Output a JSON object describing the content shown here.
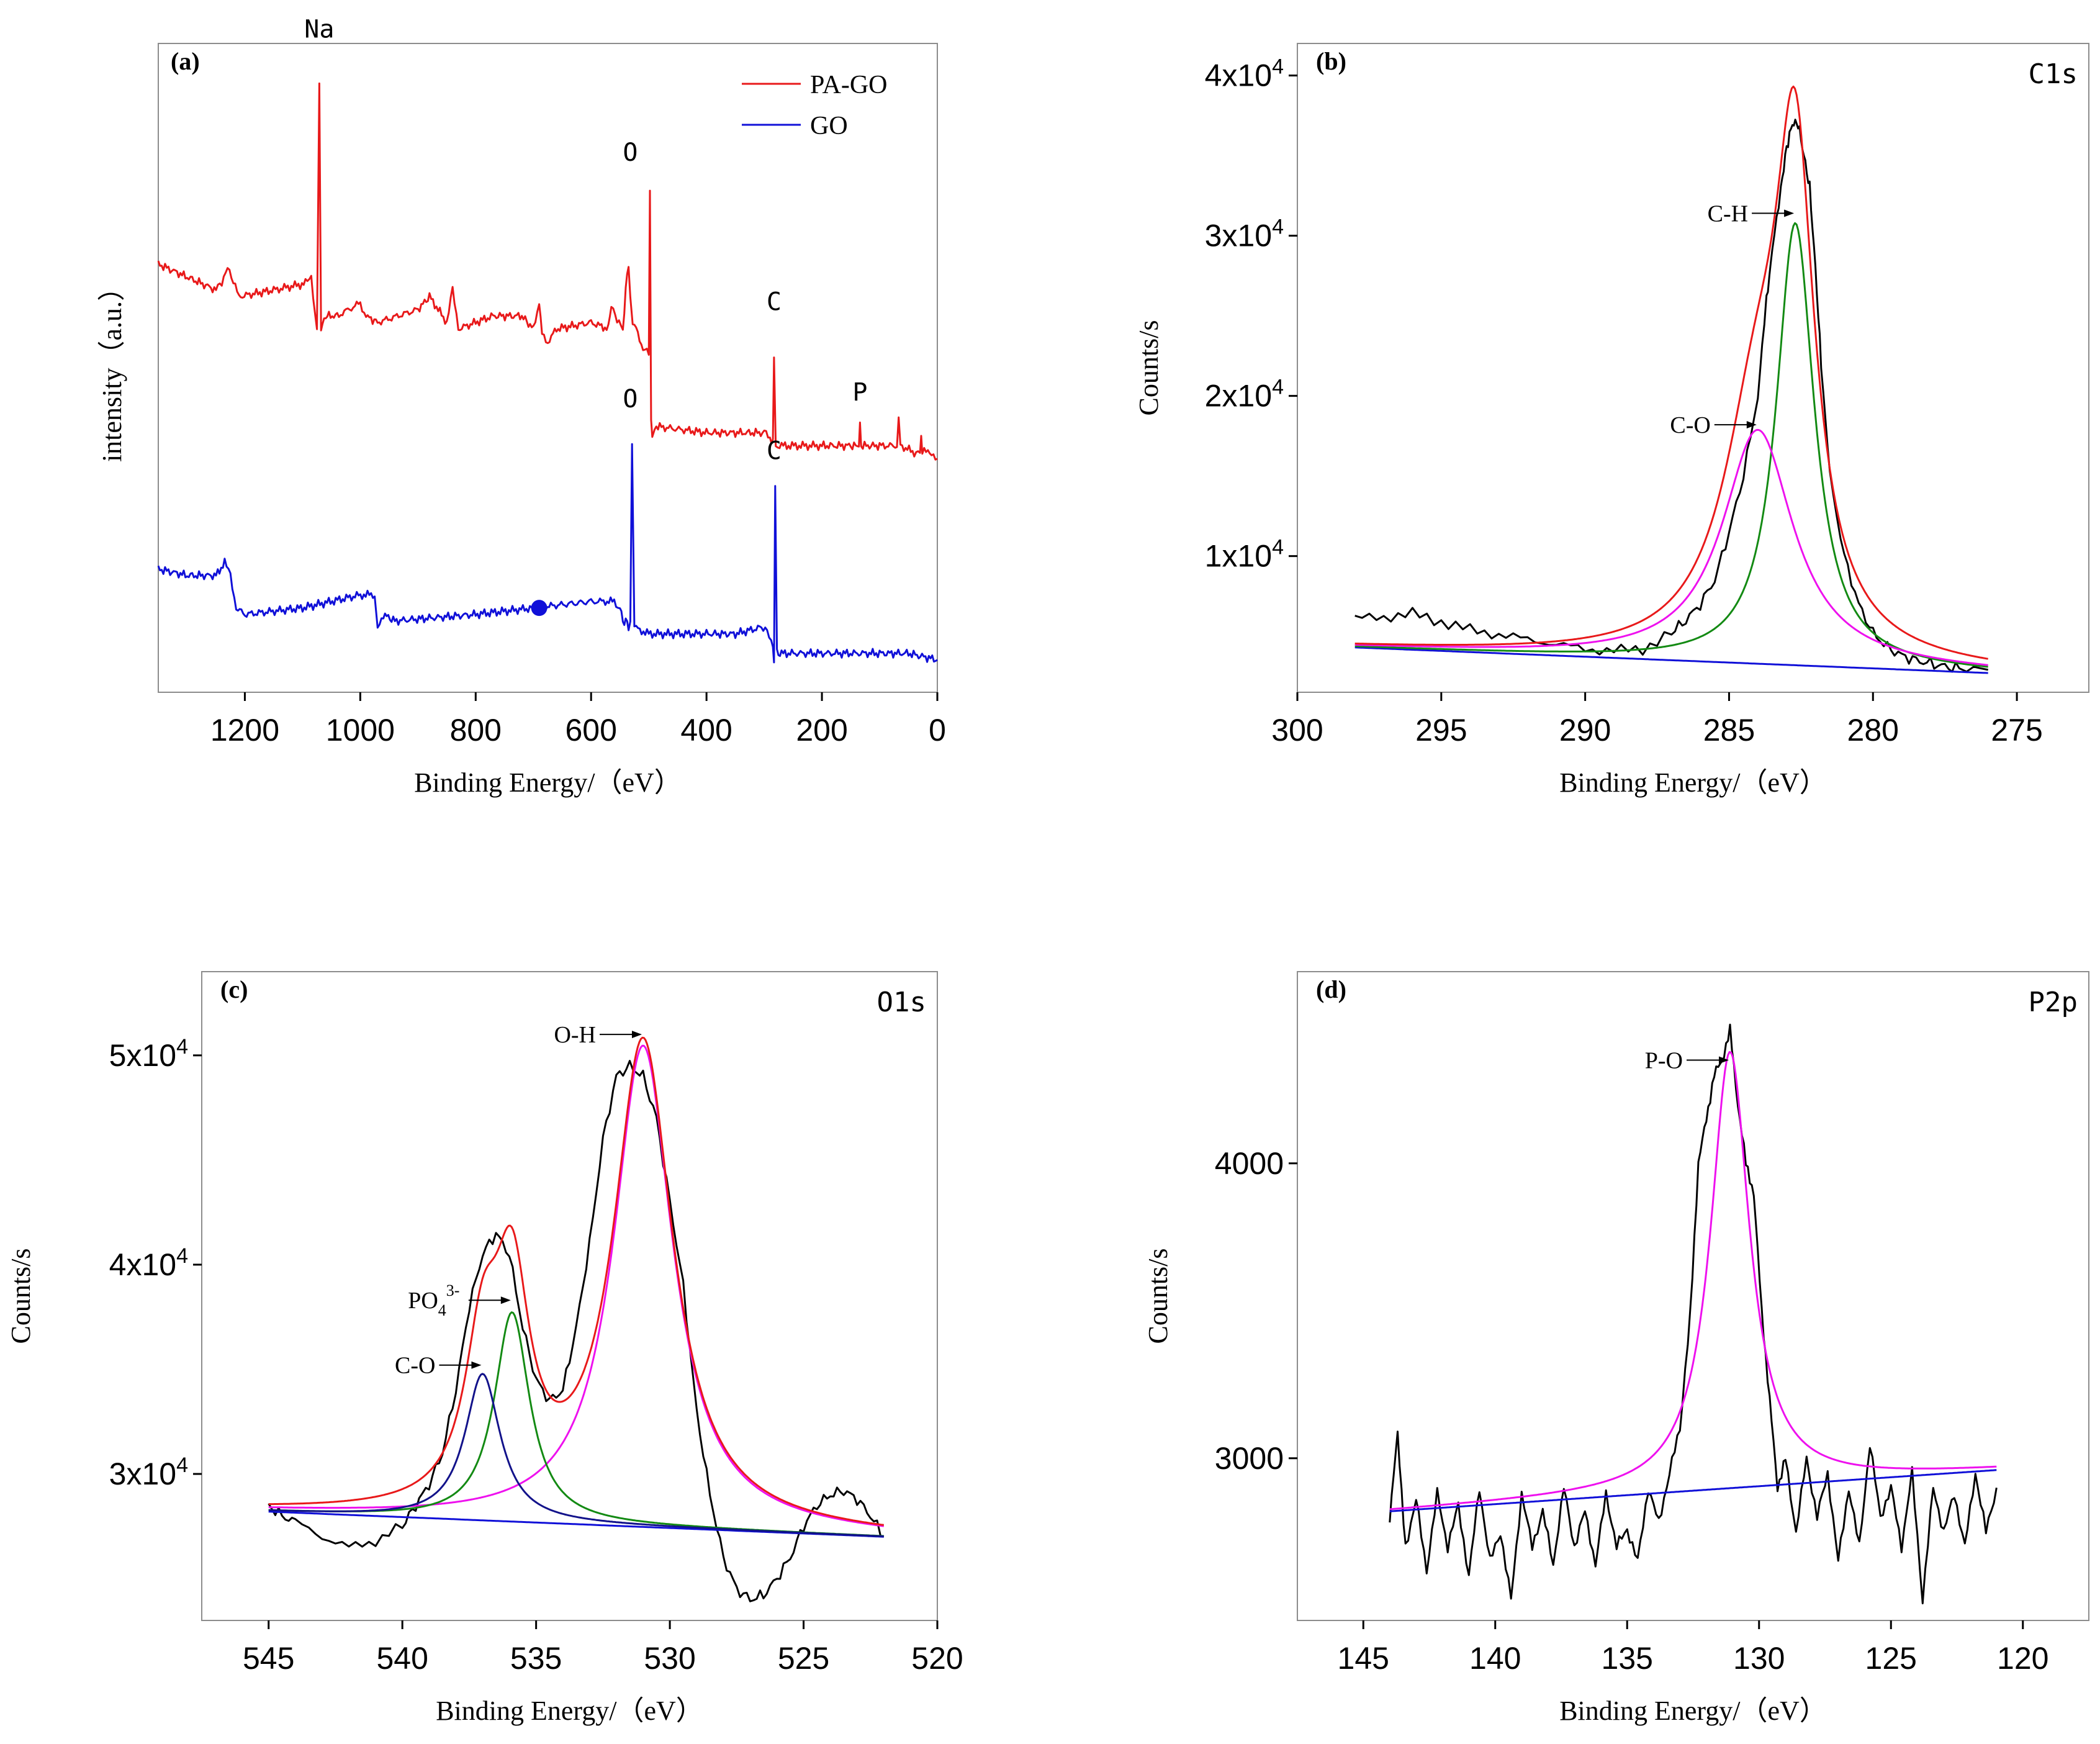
{
  "colors": {
    "pa_go": "#e8191a",
    "go": "#1010d8",
    "raw": "#000000",
    "envelope": "#e8191a",
    "background": "#1010d8",
    "ch_fit": "#138a13",
    "co_fit": "#ee11ee",
    "o_co_fit": "#12128a"
  },
  "chart_data": [
    {
      "panel": "a",
      "type": "line",
      "tag": "(a)",
      "xlabel": "Binding Energy/（eV）",
      "ylabel": "intensity（a.u.）",
      "xlim": [
        1350,
        0
      ],
      "ylim": [
        0,
        100
      ],
      "xticks": [
        1200,
        1000,
        800,
        600,
        400,
        200,
        0
      ],
      "xtick_labels": [
        "1200",
        "1000",
        "800",
        "600",
        "400",
        "200",
        "0"
      ],
      "legend": [
        "PA-GO",
        "GO"
      ],
      "series": [
        {
          "name": "PA-GO",
          "color_key": "pa_go",
          "x": [
            1350,
            1300,
            1250,
            1240,
            1230,
            1220,
            1210,
            1150,
            1095,
            1085,
            1075,
            1071,
            1068,
            1060,
            1040,
            1000,
            990,
            970,
            900,
            880,
            850,
            840,
            830,
            800,
            770,
            720,
            700,
            690,
            685,
            675,
            660,
            600,
            570,
            565,
            555,
            545,
            540,
            535,
            532,
            528,
            522,
            510,
            500,
            498,
            496,
            494,
            490,
            400,
            350,
            300,
            290,
            285,
            283,
            280,
            270,
            200,
            150,
            136,
            134,
            132,
            100,
            70,
            67,
            64,
            40,
            30,
            28,
            26,
            10,
            0
          ],
          "y": [
            66,
            64,
            62,
            63,
            66,
            63,
            61,
            62,
            63,
            64,
            56,
            94,
            56,
            58,
            58,
            60,
            58,
            57,
            59,
            61,
            57,
            62,
            56,
            57,
            58,
            58,
            56,
            60,
            55,
            54,
            56,
            57,
            56,
            60,
            57,
            56,
            62,
            66,
            61,
            57,
            56,
            53,
            52,
            78,
            42,
            40,
            41,
            40,
            40,
            40,
            39,
            39,
            52,
            38,
            38,
            38,
            38,
            38,
            41,
            38,
            38,
            38,
            42,
            38,
            37,
            37,
            40,
            37,
            37,
            36
          ]
        },
        {
          "name": "GO",
          "color_key": "go",
          "x": [
            1350,
            1300,
            1250,
            1235,
            1225,
            1215,
            1200,
            1100,
            1000,
            975,
            970,
            960,
            940,
            800,
            700,
            600,
            560,
            550,
            545,
            540,
            535,
            532,
            529,
            525,
            500,
            400,
            350,
            305,
            295,
            288,
            285,
            283,
            281,
            278,
            270,
            100,
            50,
            0
          ],
          "y": [
            19,
            18,
            18,
            20,
            18,
            13,
            12,
            13,
            15,
            15,
            10,
            12,
            11,
            12,
            13,
            14,
            14,
            13,
            11,
            11,
            10,
            11,
            38,
            10,
            9,
            9,
            9,
            10,
            10,
            8,
            7,
            5,
            32,
            6,
            6,
            6,
            6,
            5
          ]
        }
      ],
      "marker": {
        "x": 690,
        "y": 13,
        "color_key": "go"
      },
      "peak_labels": [
        {
          "text": "Na",
          "x": 1071,
          "y": 99
        },
        {
          "text": "O",
          "x": 532,
          "y": 80
        },
        {
          "text": "C",
          "x": 283,
          "y": 57
        },
        {
          "text": "P",
          "x": 134,
          "y": 43
        },
        {
          "text": "O",
          "x": 532,
          "y": 42
        },
        {
          "text": "C",
          "x": 283,
          "y": 34
        }
      ]
    },
    {
      "panel": "b",
      "type": "line",
      "tag": "(b)",
      "corner_label": "C1s",
      "xlabel": "Binding Energy/（eV）",
      "ylabel": "Counts/s",
      "xlim": [
        300,
        272.5
      ],
      "ylim": [
        1500,
        42000
      ],
      "xticks": [
        300,
        295,
        290,
        285,
        280,
        275
      ],
      "xtick_labels": [
        "300",
        "295",
        "290",
        "285",
        "280",
        "275"
      ],
      "yticks": [
        10000,
        20000,
        30000,
        40000
      ],
      "ytick_labels": [
        {
          "base": "1x10",
          "exp": "4"
        },
        {
          "base": "2x10",
          "exp": "4"
        },
        {
          "base": "3x10",
          "exp": "4"
        },
        {
          "base": "4x10",
          "exp": "4"
        }
      ],
      "fit_range": [
        298,
        276
      ],
      "components": [
        {
          "name": "C-H",
          "color_key": "ch_fit",
          "center": 282.7,
          "amp": 27600,
          "width": 0.8
        },
        {
          "name": "C-O",
          "color_key": "co_fit",
          "center": 284.0,
          "amp": 14600,
          "width": 1.5
        }
      ],
      "background": {
        "x": [
          298,
          276
        ],
        "y": [
          4300,
          2700
        ]
      },
      "raw": {
        "x": [
          298,
          297,
          296,
          295,
          294,
          293,
          292,
          291,
          290,
          289,
          288,
          287,
          286.5,
          286,
          285.5,
          285,
          284.5,
          284,
          283.7,
          283.5,
          283.2,
          283,
          282.8,
          282.6,
          282.4,
          282.2,
          282,
          281.8,
          281.5,
          281,
          280.5,
          280,
          279.5,
          279,
          278.5,
          278,
          277.5,
          277,
          276
        ],
        "y": [
          6100,
          6200,
          6400,
          5900,
          5400,
          5100,
          4800,
          4500,
          4200,
          4100,
          4200,
          5200,
          6000,
          7000,
          8500,
          11500,
          15000,
          20000,
          26000,
          29000,
          33000,
          35500,
          37000,
          37000,
          35000,
          33000,
          28000,
          22000,
          15000,
          10000,
          7000,
          5200,
          4300,
          3800,
          3500,
          3300,
          3100,
          3000,
          2900
        ]
      },
      "annotations": [
        {
          "text": "C-H",
          "x": 282.7,
          "y": 31400
        },
        {
          "text": "C-O",
          "x": 284.0,
          "y": 18200
        }
      ]
    },
    {
      "panel": "c",
      "type": "line",
      "tag": "(c)",
      "corner_label": "O1s",
      "xlabel": "Binding Energy/（eV）",
      "ylabel": "Counts/s",
      "xlim": [
        547.5,
        520
      ],
      "ylim": [
        23000,
        54000
      ],
      "xticks": [
        545,
        540,
        535,
        530,
        525,
        520
      ],
      "xtick_labels": [
        "545",
        "540",
        "535",
        "530",
        "525",
        "520"
      ],
      "yticks": [
        30000,
        40000,
        50000
      ],
      "ytick_labels": [
        {
          "base": "3x10",
          "exp": "4"
        },
        {
          "base": "4x10",
          "exp": "4"
        },
        {
          "base": "5x10",
          "exp": "4"
        }
      ],
      "fit_range": [
        545,
        522
      ],
      "components": [
        {
          "name": "O-H",
          "color_key": "co_fit",
          "center": 531.0,
          "amp": 23000,
          "width": 1.35
        },
        {
          "name": "PO4 3-",
          "color_key": "ch_fit",
          "center": 535.9,
          "amp": 10000,
          "width": 0.8
        },
        {
          "name": "C-O",
          "color_key": "o_co_fit",
          "center": 537.0,
          "amp": 7000,
          "width": 0.8
        }
      ],
      "background": {
        "x": [
          545,
          522
        ],
        "y": [
          28200,
          27000
        ]
      },
      "raw": {
        "x": [
          545,
          544.5,
          544,
          543,
          542,
          541,
          540,
          539.5,
          539,
          538.5,
          538,
          537.5,
          537,
          536.5,
          536,
          535.5,
          535,
          534.5,
          534,
          533.5,
          533,
          532.5,
          532,
          531.5,
          531,
          530.5,
          530,
          529.5,
          529,
          528.5,
          528,
          527.5,
          527,
          526.5,
          526,
          525.5,
          525,
          524.5,
          524,
          523.5,
          523,
          522.5,
          522
        ],
        "y": [
          28500,
          28000,
          27700,
          27000,
          26500,
          26800,
          27500,
          28500,
          29500,
          31000,
          34000,
          38000,
          40500,
          41500,
          40500,
          37000,
          34500,
          33500,
          34000,
          37000,
          41000,
          46000,
          49000,
          49500,
          49000,
          47000,
          43000,
          39000,
          33000,
          29000,
          26000,
          24500,
          24000,
          24200,
          25000,
          26000,
          27500,
          28500,
          29000,
          29200,
          28800,
          28000,
          27000
        ]
      },
      "annotations": [
        {
          "text": "O-H",
          "x": 531.0,
          "y": 51000
        },
        {
          "text": "PO",
          "sub": "4",
          "sup": "3-",
          "x": 535.9,
          "y": 38300
        },
        {
          "text": "C-O",
          "x": 537.0,
          "y": 35200
        }
      ]
    },
    {
      "panel": "d",
      "type": "line",
      "tag": "(d)",
      "corner_label": "P2p",
      "xlabel": "Binding Energy/（eV）",
      "ylabel": "Counts/s",
      "xlim": [
        147.5,
        117.5
      ],
      "ylim": [
        2450,
        4650
      ],
      "xticks": [
        145,
        140,
        135,
        130,
        125,
        120
      ],
      "xtick_labels": [
        "145",
        "140",
        "135",
        "130",
        "125",
        "120"
      ],
      "yticks": [
        3000,
        4000
      ],
      "ytick_labels": [
        {
          "plain": "3000"
        },
        {
          "plain": "4000"
        }
      ],
      "fit_range": [
        144,
        121
      ],
      "components": [
        {
          "name": "P-O",
          "color_key": "co_fit",
          "center": 131.1,
          "amp": 1480,
          "width": 0.9
        }
      ],
      "background": {
        "x": [
          144,
          121
        ],
        "y": [
          2820,
          2960
        ]
      },
      "raw": {
        "x": [
          144,
          143.7,
          143.4,
          143,
          142.6,
          142.2,
          141.8,
          141.4,
          141,
          140.6,
          140.2,
          139.8,
          139.4,
          139,
          138.6,
          138.2,
          137.8,
          137.4,
          137,
          136.6,
          136.2,
          135.8,
          135.4,
          135,
          134.6,
          134.2,
          133.8,
          133.4,
          133,
          132.6,
          132.3,
          132,
          131.7,
          131.4,
          131.1,
          130.8,
          130.5,
          130.2,
          129.9,
          129.6,
          129.3,
          129,
          128.6,
          128.2,
          127.8,
          127.4,
          127,
          126.6,
          126.2,
          125.8,
          125.4,
          125,
          124.6,
          124.2,
          123.8,
          123.4,
          123,
          122.6,
          122.2,
          121.8,
          121.4,
          121
        ],
        "y": [
          2800,
          3080,
          2700,
          2860,
          2620,
          2880,
          2700,
          2840,
          2600,
          2900,
          2650,
          2750,
          2520,
          2880,
          2700,
          2820,
          2640,
          2900,
          2700,
          2820,
          2640,
          2880,
          2700,
          2760,
          2650,
          2900,
          2780,
          2950,
          3100,
          3500,
          4000,
          4150,
          4300,
          4350,
          4450,
          4200,
          4000,
          3900,
          3500,
          3200,
          2900,
          3000,
          2750,
          3000,
          2800,
          2950,
          2650,
          2900,
          2700,
          3050,
          2800,
          2900,
          2700,
          2950,
          2520,
          2900,
          2750,
          2880,
          2700,
          2950,
          2750,
          2900
        ]
      },
      "annotations": [
        {
          "text": "P-O",
          "x": 131.1,
          "y": 4350
        }
      ]
    }
  ]
}
